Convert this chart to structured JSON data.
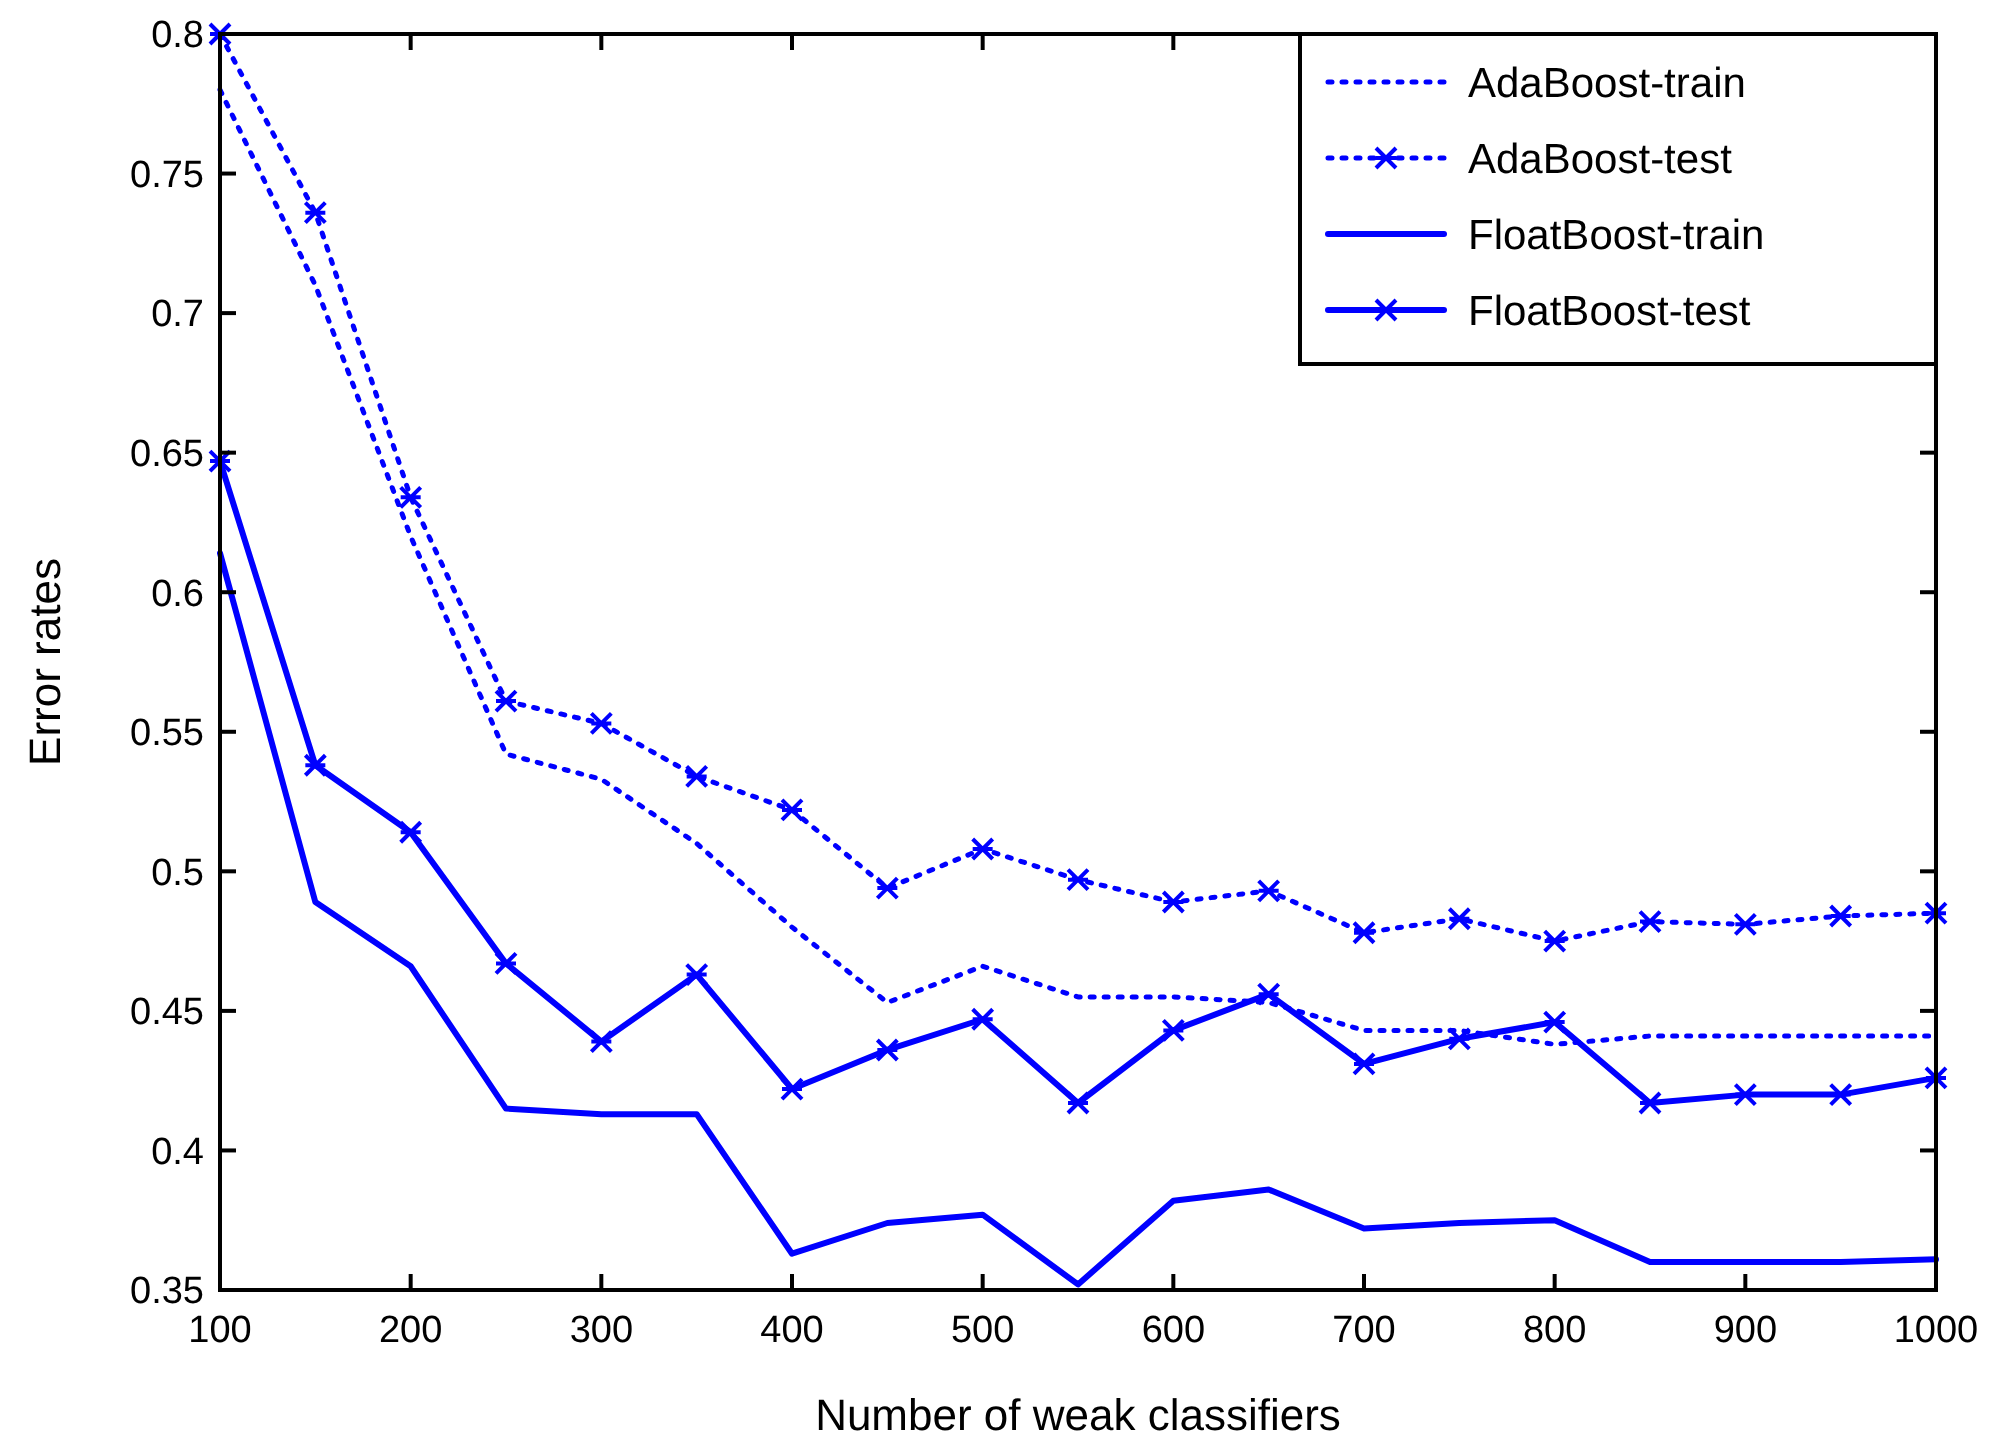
{
  "chart_data": {
    "type": "line",
    "xlabel": "Number of weak classifiers",
    "ylabel": "Error rates",
    "x": [
      100,
      150,
      200,
      250,
      300,
      350,
      400,
      450,
      500,
      550,
      600,
      650,
      700,
      750,
      800,
      850,
      900,
      950,
      1000
    ],
    "series": [
      {
        "name": "AdaBoost-train",
        "color": "#0000ff",
        "line_style": "dotted",
        "marker": "none",
        "values": [
          0.78,
          0.71,
          0.62,
          0.542,
          0.533,
          0.51,
          0.48,
          0.453,
          0.466,
          0.455,
          0.455,
          0.453,
          0.443,
          0.443,
          0.438,
          0.441,
          0.441,
          0.441,
          0.441
        ]
      },
      {
        "name": "AdaBoost-test",
        "color": "#0000ff",
        "line_style": "dotted",
        "marker": "cross",
        "values": [
          0.8,
          0.736,
          0.634,
          0.561,
          0.553,
          0.534,
          0.522,
          0.494,
          0.508,
          0.497,
          0.489,
          0.493,
          0.478,
          0.483,
          0.475,
          0.482,
          0.481,
          0.484,
          0.485
        ]
      },
      {
        "name": "FloatBoost-train",
        "color": "#0000ff",
        "line_style": "solid",
        "marker": "none",
        "values": [
          0.614,
          0.489,
          0.466,
          0.415,
          0.413,
          0.413,
          0.363,
          0.374,
          0.377,
          0.352,
          0.382,
          0.386,
          0.372,
          0.374,
          0.375,
          0.36,
          0.36,
          0.36,
          0.361
        ]
      },
      {
        "name": "FloatBoost-test",
        "color": "#0000ff",
        "line_style": "solid",
        "marker": "cross",
        "values": [
          0.647,
          0.538,
          0.514,
          0.467,
          0.439,
          0.463,
          0.422,
          0.436,
          0.447,
          0.417,
          0.443,
          0.456,
          0.431,
          0.44,
          0.446,
          0.417,
          0.42,
          0.42,
          0.426
        ]
      }
    ],
    "xlim": [
      100,
      1000
    ],
    "xticks": [
      100,
      200,
      300,
      400,
      500,
      600,
      700,
      800,
      900,
      1000
    ],
    "ylim": [
      0.35,
      0.8
    ],
    "yticks": [
      0.35,
      0.4,
      0.45,
      0.5,
      0.55,
      0.6,
      0.65,
      0.7,
      0.75,
      0.8
    ],
    "grid": false,
    "legend": "top right"
  }
}
